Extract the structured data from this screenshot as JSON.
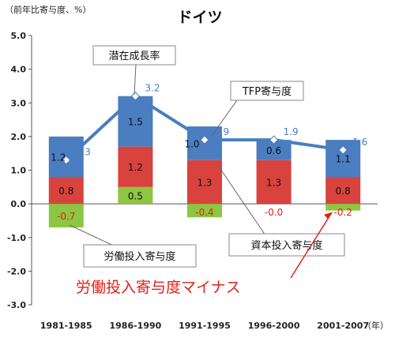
{
  "chart_data": {
    "type": "bar",
    "title": "ドイツ",
    "yunit_label": "（前年比寄与度、%）",
    "xunit_label": "（年）",
    "categories": [
      "1981-1985",
      "1986-1990",
      "1991-1995",
      "1996-2000",
      "2001-2007"
    ],
    "ylim": [
      -3.0,
      5.0
    ],
    "yticks": [
      "5.0",
      "4.0",
      "3.0",
      "2.0",
      "1.0",
      "0.0",
      "-1.0",
      "-2.0",
      "-3.0"
    ],
    "grid": false,
    "series": [
      {
        "name": "労働投入寄与度",
        "color": "#8dc641",
        "kind": "bar",
        "values": [
          -0.7,
          0.5,
          -0.4,
          -0.0,
          -0.2
        ],
        "labels": [
          "-0.7",
          "0.5",
          "-0.4",
          "-0.0",
          "-0.2"
        ]
      },
      {
        "name": "資本投入寄与度",
        "color": "#d9433d",
        "kind": "bar",
        "values": [
          0.8,
          1.2,
          1.3,
          1.3,
          0.8
        ],
        "labels": [
          "0.8",
          "1.2",
          "1.3",
          "1.3",
          "0.8"
        ]
      },
      {
        "name": "TFP寄与度",
        "color": "#4a7ec1",
        "kind": "bar",
        "values": [
          1.2,
          1.5,
          1.0,
          0.6,
          1.1
        ],
        "labels": [
          "1.2",
          "1.5",
          "1.0",
          "0.6",
          "1.1"
        ]
      },
      {
        "name": "潜在成長率",
        "color": "#4a7ec1",
        "kind": "line",
        "values": [
          1.3,
          3.2,
          1.9,
          1.9,
          1.6
        ],
        "labels": [
          "1.3",
          "3.2",
          "1.9",
          "1.9",
          "1.6"
        ]
      }
    ],
    "callouts": {
      "potential": "潜在成長率",
      "tfp": "TFP寄与度",
      "capital": "資本投入寄与度",
      "labor": "労働投入寄与度",
      "note": "労働投入寄与度マイナス"
    },
    "colors": {
      "labor_negative_label": "#e0221a",
      "note": "#e0221a",
      "line_label": "#4a7ec1",
      "marker": "#ffffff",
      "frame": "#777777"
    }
  }
}
